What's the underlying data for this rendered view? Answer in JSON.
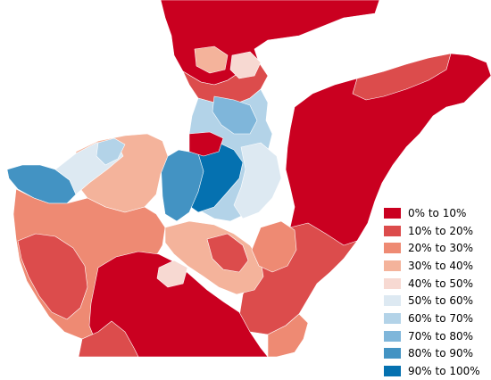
{
  "legend": {
    "items": [
      {
        "label": "0% to 10%",
        "color": "#ca0020"
      },
      {
        "label": "10% to 20%",
        "color": "#dc4c4c"
      },
      {
        "label": "20% to 30%",
        "color": "#ee8a73"
      },
      {
        "label": "30% to 40%",
        "color": "#f4b39b"
      },
      {
        "label": "40% to 50%",
        "color": "#f7d9d2"
      },
      {
        "label": "50% to 60%",
        "color": "#dde9f2"
      },
      {
        "label": "60% to 70%",
        "color": "#b3d3e8"
      },
      {
        "label": "70% to 80%",
        "color": "#7fb6da"
      },
      {
        "label": "80% to 90%",
        "color": "#4393c3"
      },
      {
        "label": "90% to 100%",
        "color": "#0571b0"
      }
    ]
  },
  "map": {
    "region_colors": {
      "dark_red": "#ca0020",
      "red": "#dc4c4c",
      "salmon": "#ee8a73",
      "light_salmon": "#f4b39b",
      "pale_pink": "#f7d9d2",
      "pale_blue": "#dde9f2",
      "light_blue": "#b3d3e8",
      "mid_blue": "#7fb6da",
      "blue": "#4393c3",
      "dark_blue": "#0571b0"
    }
  }
}
